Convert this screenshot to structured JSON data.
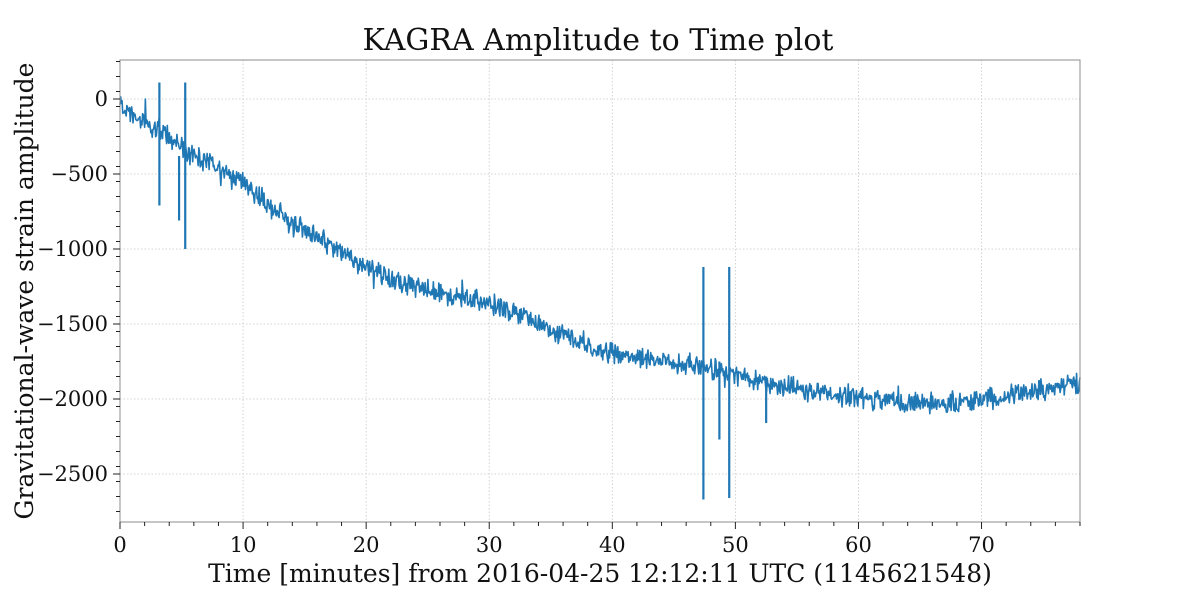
{
  "chart_data": {
    "type": "line",
    "title": "KAGRA Amplitude to Time plot",
    "xlabel": "Time [minutes] from 2016-04-25 12:12:11 UTC (1145621548)",
    "ylabel": "Gravitational-wave strain amplitude",
    "xlim": [
      0,
      78
    ],
    "ylim": [
      -2820,
      260
    ],
    "x_ticks": [
      0,
      10,
      20,
      30,
      40,
      50,
      60,
      70
    ],
    "y_ticks": [
      0,
      -500,
      -1000,
      -1500,
      -2000,
      -2500
    ],
    "x_tick_labels": [
      "0",
      "10",
      "20",
      "30",
      "40",
      "50",
      "60",
      "70"
    ],
    "y_tick_labels": [
      "0",
      "−500",
      "−1000",
      "−1500",
      "−2000",
      "−2500"
    ],
    "grid": true,
    "legend": "none",
    "color": "#1f77b4",
    "series": [
      {
        "trend": {
          "x": [
            0,
            2,
            4,
            6,
            8,
            10,
            12,
            14,
            16,
            18,
            20,
            22,
            24,
            26,
            28,
            30,
            32,
            34,
            36,
            38,
            40,
            42,
            44,
            46,
            48,
            50,
            52,
            54,
            56,
            58,
            60,
            62,
            64,
            66,
            68,
            70,
            72,
            74,
            76,
            78
          ],
          "y": [
            -40,
            -150,
            -260,
            -380,
            -470,
            -560,
            -700,
            -830,
            -920,
            -1020,
            -1120,
            -1200,
            -1250,
            -1290,
            -1320,
            -1370,
            -1430,
            -1500,
            -1570,
            -1640,
            -1690,
            -1720,
            -1740,
            -1770,
            -1800,
            -1840,
            -1880,
            -1920,
            -1950,
            -1970,
            -1990,
            -2010,
            -2020,
            -2020,
            -2030,
            -2000,
            -1970,
            -1950,
            -1920,
            -1890
          ]
        },
        "spikes": [
          {
            "x": 3.2,
            "y_min": -710,
            "y_max": 110
          },
          {
            "x": 4.8,
            "y_min": -810,
            "y_max": -380
          },
          {
            "x": 5.3,
            "y_min": -1000,
            "y_max": 110
          },
          {
            "x": 47.4,
            "y_min": -2670,
            "y_max": -1120
          },
          {
            "x": 48.7,
            "y_min": -2270,
            "y_max": -1750
          },
          {
            "x": 49.5,
            "y_min": -2660,
            "y_max": -1120
          },
          {
            "x": 52.5,
            "y_min": -2160,
            "y_max": -1850
          }
        ]
      }
    ]
  }
}
